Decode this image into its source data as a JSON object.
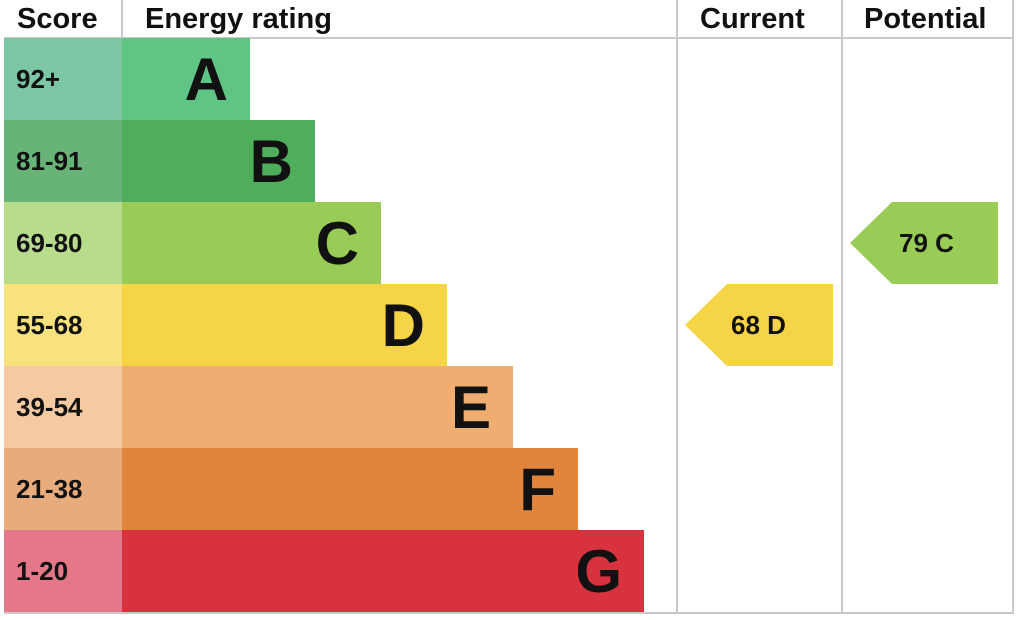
{
  "headers": {
    "score": "Score",
    "rating": "Energy rating",
    "current": "Current",
    "potential": "Potential"
  },
  "chart_data": {
    "type": "bar",
    "title": "",
    "bands": [
      {
        "score": "92+",
        "letter": "A",
        "color": "#5ec585",
        "score_color": "#7cc6a3"
      },
      {
        "score": "81-91",
        "letter": "B",
        "color": "#4fae5c",
        "score_color": "#68b478"
      },
      {
        "score": "69-80",
        "letter": "C",
        "color": "#98cc56",
        "score_color": "#b6dc8c"
      },
      {
        "score": "55-68",
        "letter": "D",
        "color": "#f5d446",
        "score_color": "#f9e27c"
      },
      {
        "score": "39-54",
        "letter": "E",
        "color": "#efad72",
        "score_color": "#f5caa3"
      },
      {
        "score": "21-38",
        "letter": "F",
        "color": "#e1843c",
        "score_color": "#e8ab7c"
      },
      {
        "score": "1-20",
        "letter": "G",
        "color": "#d8323e",
        "score_color": "#e47888"
      }
    ],
    "current": {
      "value": 68,
      "letter": "D",
      "label": "68  D",
      "color": "#f5d446"
    },
    "potential": {
      "value": 79,
      "letter": "C",
      "label": "79  C",
      "color": "#98cc56"
    }
  }
}
